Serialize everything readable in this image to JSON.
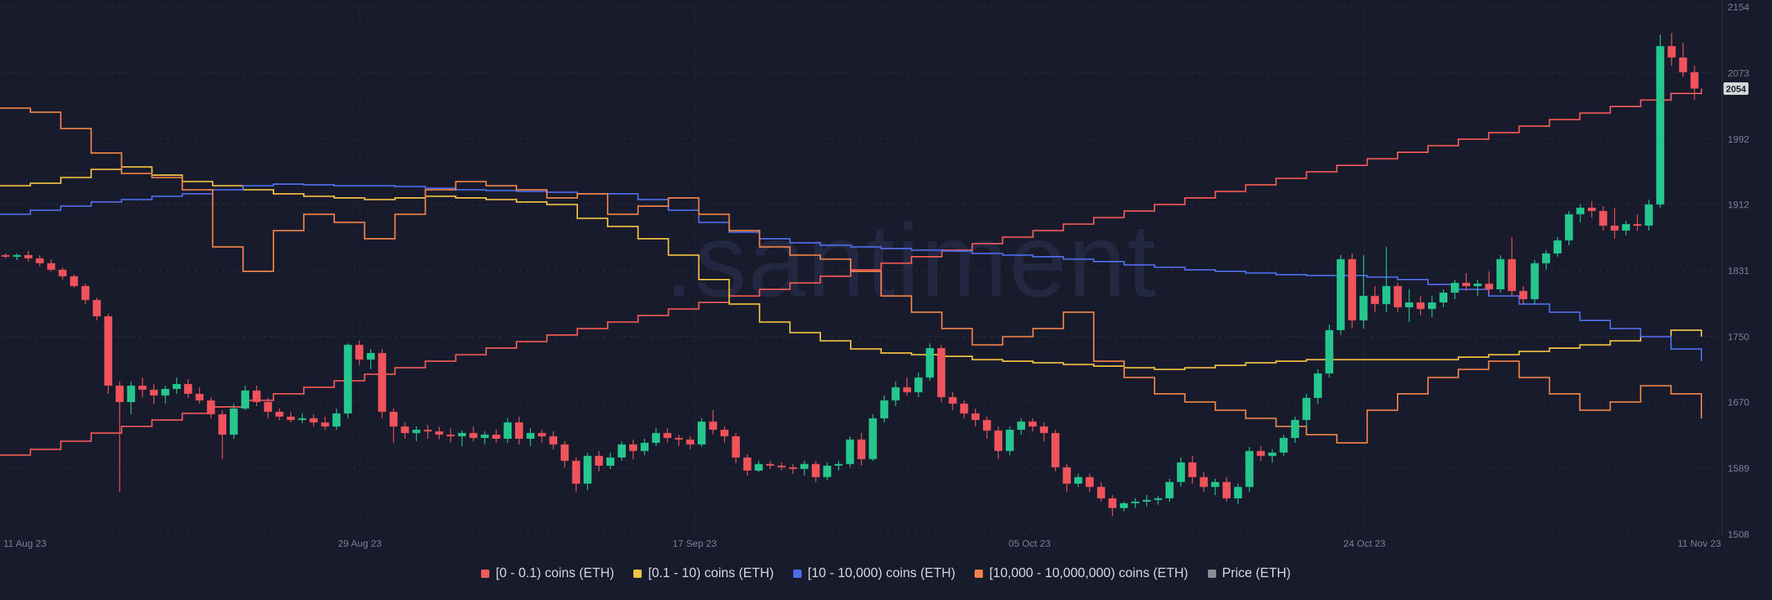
{
  "watermark": ".santiment",
  "chart_data": {
    "type": "line",
    "title": "",
    "xlabel": "",
    "ylabel": "",
    "x_ticks": [
      "11 Aug 23",
      "29 Aug 23",
      "17 Sep 23",
      "05 Oct 23",
      "24 Oct 23",
      "11 Nov 23"
    ],
    "y_ticks": [
      1508,
      1589,
      1670,
      1750,
      1831,
      1912,
      1992,
      2073,
      2154
    ],
    "ylim": [
      1508,
      2154
    ],
    "grid": true,
    "legend_position": "bottom",
    "current_price_label": "2054",
    "colors": {
      "bull": "#26c78e",
      "bear": "#f0535b"
    },
    "series": [
      {
        "name": "[0 - 0.1) coins (ETH)",
        "color": "#f25a5a",
        "values": [
          1605,
          1612,
          1622,
          1632,
          1640,
          1648,
          1656,
          1664,
          1672,
          1680,
          1688,
          1696,
          1704,
          1712,
          1720,
          1728,
          1736,
          1744,
          1752,
          1760,
          1768,
          1776,
          1784,
          1792,
          1800,
          1808,
          1816,
          1824,
          1832,
          1840,
          1848,
          1856,
          1864,
          1872,
          1880,
          1888,
          1896,
          1904,
          1912,
          1920,
          1928,
          1936,
          1944,
          1952,
          1960,
          1968,
          1976,
          1984,
          1992,
          2000,
          2008,
          2016,
          2024,
          2032,
          2040,
          2048,
          2054
        ]
      },
      {
        "name": "[0.1 - 10) coins (ETH)",
        "color": "#f5c344",
        "values": [
          1935,
          1938,
          1945,
          1955,
          1958,
          1948,
          1940,
          1935,
          1930,
          1925,
          1922,
          1920,
          1918,
          1920,
          1922,
          1920,
          1918,
          1915,
          1912,
          1895,
          1885,
          1870,
          1850,
          1820,
          1790,
          1768,
          1755,
          1745,
          1735,
          1730,
          1728,
          1726,
          1722,
          1720,
          1718,
          1716,
          1714,
          1712,
          1710,
          1712,
          1715,
          1718,
          1720,
          1722,
          1722,
          1722,
          1722,
          1722,
          1725,
          1728,
          1732,
          1736,
          1740,
          1745,
          1750,
          1758,
          1750
        ]
      },
      {
        "name": "[10 - 10,000) coins (ETH)",
        "color": "#4f6de8",
        "values": [
          1900,
          1905,
          1910,
          1915,
          1918,
          1922,
          1925,
          1930,
          1935,
          1937,
          1936,
          1935,
          1935,
          1934,
          1932,
          1930,
          1929,
          1928,
          1927,
          1925,
          1925,
          1918,
          1905,
          1890,
          1878,
          1870,
          1865,
          1862,
          1860,
          1858,
          1856,
          1855,
          1852,
          1850,
          1848,
          1845,
          1842,
          1838,
          1835,
          1832,
          1830,
          1828,
          1826,
          1825,
          1825,
          1823,
          1820,
          1814,
          1808,
          1800,
          1790,
          1780,
          1770,
          1760,
          1750,
          1735,
          1720
        ]
      },
      {
        "name": "[10,000 - 10,000,000) coins (ETH)",
        "color": "#f0834a",
        "values": [
          2030,
          2025,
          2005,
          1975,
          1950,
          1945,
          1930,
          1860,
          1830,
          1880,
          1900,
          1890,
          1870,
          1900,
          1930,
          1940,
          1935,
          1930,
          1920,
          1925,
          1900,
          1910,
          1920,
          1900,
          1880,
          1860,
          1850,
          1845,
          1830,
          1800,
          1780,
          1760,
          1740,
          1750,
          1760,
          1780,
          1720,
          1700,
          1680,
          1670,
          1660,
          1650,
          1640,
          1630,
          1620,
          1660,
          1680,
          1700,
          1710,
          1720,
          1700,
          1680,
          1660,
          1670,
          1690,
          1680,
          1650
        ]
      },
      {
        "name": "Price (ETH)",
        "color": "#8a8c95",
        "ohlc": [
          [
            1850,
            1852,
            1846,
            1848
          ],
          [
            1848,
            1852,
            1844,
            1850
          ],
          [
            1850,
            1855,
            1842,
            1846
          ],
          [
            1846,
            1850,
            1836,
            1840
          ],
          [
            1840,
            1845,
            1830,
            1832
          ],
          [
            1832,
            1835,
            1820,
            1824
          ],
          [
            1824,
            1826,
            1810,
            1812
          ],
          [
            1812,
            1815,
            1790,
            1795
          ],
          [
            1795,
            1798,
            1770,
            1775
          ],
          [
            1775,
            1778,
            1680,
            1690
          ],
          [
            1690,
            1695,
            1560,
            1670
          ],
          [
            1670,
            1695,
            1655,
            1690
          ],
          [
            1690,
            1700,
            1676,
            1685
          ],
          [
            1685,
            1692,
            1668,
            1678
          ],
          [
            1678,
            1690,
            1668,
            1686
          ],
          [
            1686,
            1700,
            1680,
            1692
          ],
          [
            1692,
            1698,
            1675,
            1680
          ],
          [
            1680,
            1688,
            1668,
            1672
          ],
          [
            1672,
            1676,
            1650,
            1655
          ],
          [
            1655,
            1660,
            1600,
            1630
          ],
          [
            1630,
            1668,
            1625,
            1662
          ],
          [
            1662,
            1690,
            1660,
            1684
          ],
          [
            1684,
            1690,
            1665,
            1670
          ],
          [
            1670,
            1675,
            1650,
            1658
          ],
          [
            1658,
            1662,
            1648,
            1652
          ],
          [
            1652,
            1658,
            1645,
            1648
          ],
          [
            1648,
            1656,
            1644,
            1650
          ],
          [
            1650,
            1655,
            1640,
            1645
          ],
          [
            1645,
            1652,
            1636,
            1640
          ],
          [
            1640,
            1662,
            1636,
            1656
          ],
          [
            1656,
            1742,
            1650,
            1740
          ],
          [
            1740,
            1745,
            1715,
            1722
          ],
          [
            1722,
            1735,
            1710,
            1730
          ],
          [
            1730,
            1735,
            1650,
            1658
          ],
          [
            1658,
            1662,
            1620,
            1640
          ],
          [
            1640,
            1645,
            1625,
            1632
          ],
          [
            1632,
            1640,
            1622,
            1636
          ],
          [
            1636,
            1642,
            1625,
            1634
          ],
          [
            1634,
            1640,
            1624,
            1630
          ],
          [
            1630,
            1638,
            1620,
            1628
          ],
          [
            1628,
            1635,
            1616,
            1632
          ],
          [
            1632,
            1640,
            1622,
            1626
          ],
          [
            1626,
            1634,
            1618,
            1630
          ],
          [
            1630,
            1636,
            1620,
            1625
          ],
          [
            1625,
            1650,
            1620,
            1645
          ],
          [
            1645,
            1652,
            1618,
            1625
          ],
          [
            1625,
            1638,
            1616,
            1632
          ],
          [
            1632,
            1636,
            1620,
            1628
          ],
          [
            1628,
            1634,
            1612,
            1618
          ],
          [
            1618,
            1622,
            1590,
            1598
          ],
          [
            1598,
            1602,
            1560,
            1570
          ],
          [
            1570,
            1608,
            1562,
            1604
          ],
          [
            1604,
            1610,
            1585,
            1592
          ],
          [
            1592,
            1608,
            1588,
            1602
          ],
          [
            1602,
            1622,
            1598,
            1618
          ],
          [
            1618,
            1624,
            1600,
            1610
          ],
          [
            1610,
            1625,
            1605,
            1620
          ],
          [
            1620,
            1638,
            1616,
            1632
          ],
          [
            1632,
            1638,
            1620,
            1626
          ],
          [
            1626,
            1630,
            1616,
            1624
          ],
          [
            1624,
            1628,
            1612,
            1618
          ],
          [
            1618,
            1650,
            1615,
            1646
          ],
          [
            1646,
            1660,
            1630,
            1636
          ],
          [
            1636,
            1640,
            1620,
            1628
          ],
          [
            1628,
            1632,
            1595,
            1602
          ],
          [
            1602,
            1606,
            1580,
            1586
          ],
          [
            1586,
            1598,
            1584,
            1594
          ],
          [
            1594,
            1598,
            1588,
            1592
          ],
          [
            1592,
            1596,
            1586,
            1590
          ],
          [
            1590,
            1594,
            1582,
            1588
          ],
          [
            1588,
            1598,
            1580,
            1594
          ],
          [
            1594,
            1598,
            1572,
            1578
          ],
          [
            1578,
            1596,
            1574,
            1592
          ],
          [
            1592,
            1598,
            1586,
            1594
          ],
          [
            1594,
            1628,
            1590,
            1624
          ],
          [
            1624,
            1632,
            1592,
            1600
          ],
          [
            1600,
            1655,
            1598,
            1650
          ],
          [
            1650,
            1678,
            1645,
            1672
          ],
          [
            1672,
            1695,
            1665,
            1688
          ],
          [
            1688,
            1700,
            1678,
            1682
          ],
          [
            1682,
            1706,
            1676,
            1700
          ],
          [
            1700,
            1742,
            1696,
            1736
          ],
          [
            1736,
            1740,
            1670,
            1676
          ],
          [
            1676,
            1682,
            1660,
            1668
          ],
          [
            1668,
            1672,
            1650,
            1656
          ],
          [
            1656,
            1662,
            1640,
            1648
          ],
          [
            1648,
            1652,
            1625,
            1635
          ],
          [
            1635,
            1640,
            1600,
            1610
          ],
          [
            1610,
            1640,
            1605,
            1636
          ],
          [
            1636,
            1650,
            1630,
            1646
          ],
          [
            1646,
            1650,
            1634,
            1640
          ],
          [
            1640,
            1645,
            1622,
            1632
          ],
          [
            1632,
            1636,
            1585,
            1590
          ],
          [
            1590,
            1594,
            1560,
            1570
          ],
          [
            1570,
            1582,
            1566,
            1578
          ],
          [
            1578,
            1582,
            1560,
            1566
          ],
          [
            1566,
            1572,
            1548,
            1552
          ],
          [
            1552,
            1556,
            1530,
            1540
          ],
          [
            1540,
            1548,
            1536,
            1546
          ],
          [
            1546,
            1552,
            1540,
            1548
          ],
          [
            1548,
            1556,
            1542,
            1550
          ],
          [
            1550,
            1555,
            1544,
            1552
          ],
          [
            1552,
            1576,
            1548,
            1572
          ],
          [
            1572,
            1602,
            1566,
            1596
          ],
          [
            1596,
            1604,
            1570,
            1578
          ],
          [
            1578,
            1584,
            1560,
            1566
          ],
          [
            1566,
            1576,
            1556,
            1572
          ],
          [
            1572,
            1578,
            1548,
            1552
          ],
          [
            1552,
            1570,
            1545,
            1566
          ],
          [
            1566,
            1615,
            1560,
            1610
          ],
          [
            1610,
            1616,
            1598,
            1604
          ],
          [
            1604,
            1612,
            1596,
            1608
          ],
          [
            1608,
            1630,
            1604,
            1626
          ],
          [
            1626,
            1652,
            1620,
            1648
          ],
          [
            1648,
            1680,
            1640,
            1675
          ],
          [
            1675,
            1710,
            1668,
            1705
          ],
          [
            1705,
            1765,
            1700,
            1758
          ],
          [
            1758,
            1850,
            1752,
            1845
          ],
          [
            1845,
            1852,
            1760,
            1770
          ],
          [
            1770,
            1850,
            1760,
            1800
          ],
          [
            1800,
            1812,
            1780,
            1790
          ],
          [
            1790,
            1860,
            1780,
            1812
          ],
          [
            1812,
            1816,
            1780,
            1786
          ],
          [
            1786,
            1808,
            1768,
            1792
          ],
          [
            1792,
            1800,
            1776,
            1784
          ],
          [
            1784,
            1800,
            1774,
            1792
          ],
          [
            1792,
            1808,
            1786,
            1804
          ],
          [
            1804,
            1820,
            1796,
            1816
          ],
          [
            1816,
            1828,
            1806,
            1812
          ],
          [
            1812,
            1820,
            1800,
            1815
          ],
          [
            1815,
            1830,
            1802,
            1808
          ],
          [
            1808,
            1850,
            1804,
            1845
          ],
          [
            1845,
            1872,
            1800,
            1806
          ],
          [
            1806,
            1812,
            1790,
            1796
          ],
          [
            1796,
            1844,
            1790,
            1840
          ],
          [
            1840,
            1856,
            1832,
            1852
          ],
          [
            1852,
            1872,
            1848,
            1868
          ],
          [
            1868,
            1904,
            1862,
            1900
          ],
          [
            1900,
            1912,
            1890,
            1908
          ],
          [
            1908,
            1916,
            1896,
            1904
          ],
          [
            1904,
            1910,
            1880,
            1886
          ],
          [
            1886,
            1908,
            1870,
            1880
          ],
          [
            1880,
            1892,
            1874,
            1888
          ],
          [
            1888,
            1900,
            1880,
            1886
          ],
          [
            1886,
            1918,
            1880,
            1912
          ],
          [
            1912,
            2120,
            1908,
            2106
          ],
          [
            2106,
            2122,
            2082,
            2092
          ],
          [
            2092,
            2110,
            2068,
            2074
          ],
          [
            2074,
            2082,
            2040,
            2054
          ]
        ]
      }
    ]
  },
  "legend": [
    {
      "label": "[0 - 0.1) coins (ETH)",
      "color": "#f25a5a"
    },
    {
      "label": "[0.1 - 10) coins (ETH)",
      "color": "#f5c344"
    },
    {
      "label": "[10 - 10,000) coins (ETH)",
      "color": "#4f6de8"
    },
    {
      "label": "[10,000 - 10,000,000) coins (ETH)",
      "color": "#f0834a"
    },
    {
      "label": "Price (ETH)",
      "color": "#8a8c95"
    }
  ]
}
